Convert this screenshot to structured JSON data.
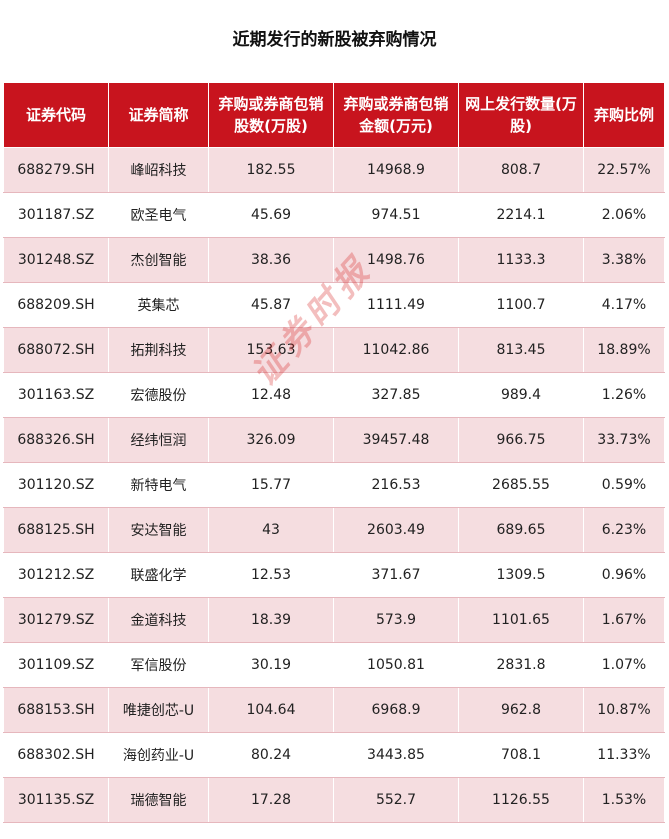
{
  "title": "近期发行的新股被弃购情况",
  "watermark": "证券时报",
  "columns": [
    "证券代码",
    "证券简称",
    "弃购或券商包销股数(万股)",
    "弃购或券商包销金额(万元)",
    "网上发行数量(万股)",
    "弃购比例"
  ],
  "rows": [
    [
      "688279.SH",
      "峰岹科技",
      "182.55",
      "14968.9",
      "808.7",
      "22.57%"
    ],
    [
      "301187.SZ",
      "欧圣电气",
      "45.69",
      "974.51",
      "2214.1",
      "2.06%"
    ],
    [
      "301248.SZ",
      "杰创智能",
      "38.36",
      "1498.76",
      "1133.3",
      "3.38%"
    ],
    [
      "688209.SH",
      "英集芯",
      "45.87",
      "1111.49",
      "1100.7",
      "4.17%"
    ],
    [
      "688072.SH",
      "拓荆科技",
      "153.63",
      "11042.86",
      "813.45",
      "18.89%"
    ],
    [
      "301163.SZ",
      "宏德股份",
      "12.48",
      "327.85",
      "989.4",
      "1.26%"
    ],
    [
      "688326.SH",
      "经纬恒润",
      "326.09",
      "39457.48",
      "966.75",
      "33.73%"
    ],
    [
      "301120.SZ",
      "新特电气",
      "15.77",
      "216.53",
      "2685.55",
      "0.59%"
    ],
    [
      "688125.SH",
      "安达智能",
      "43",
      "2603.49",
      "689.65",
      "6.23%"
    ],
    [
      "301212.SZ",
      "联盛化学",
      "12.53",
      "371.67",
      "1309.5",
      "0.96%"
    ],
    [
      "301279.SZ",
      "金道科技",
      "18.39",
      "573.9",
      "1101.65",
      "1.67%"
    ],
    [
      "301109.SZ",
      "军信股份",
      "30.19",
      "1050.81",
      "2831.8",
      "1.07%"
    ],
    [
      "688153.SH",
      "唯捷创芯-U",
      "104.64",
      "6968.9",
      "962.8",
      "10.87%"
    ],
    [
      "688302.SH",
      "海创药业-U",
      "80.24",
      "3443.85",
      "708.1",
      "11.33%"
    ],
    [
      "301135.SZ",
      "瑞德智能",
      "17.28",
      "552.7",
      "1126.55",
      "1.53%"
    ]
  ]
}
